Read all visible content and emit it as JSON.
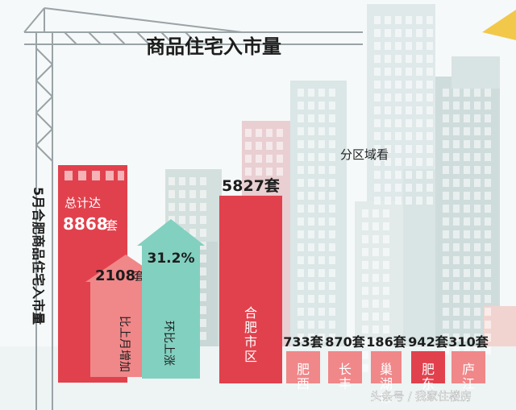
{
  "title": "商品住宅入市量",
  "subtitle": "分区域看",
  "vertical_label": "5月合肥商品住宅入市量",
  "total": {
    "label": "总计达",
    "value": "8868",
    "unit": "套"
  },
  "increase": {
    "value": "2108",
    "unit": "套",
    "label": "比上月增加"
  },
  "mom": {
    "value": "31.2%",
    "label": "环比上涨"
  },
  "watermark": "头条号 / 我家住楼房",
  "colors": {
    "red": "#e1414d",
    "pink": "#f08789",
    "teal": "#82d0c0",
    "buildings": "#d6e2e4"
  },
  "chart_data": {
    "type": "bar",
    "title": "商品住宅入市量",
    "subtitle": "分区域看",
    "unit": "套",
    "categories": [
      "合肥市区",
      "肥西",
      "长丰",
      "巢湖市",
      "肥东",
      "庐江"
    ],
    "values": [
      5827,
      733,
      870,
      186,
      942,
      310
    ]
  }
}
